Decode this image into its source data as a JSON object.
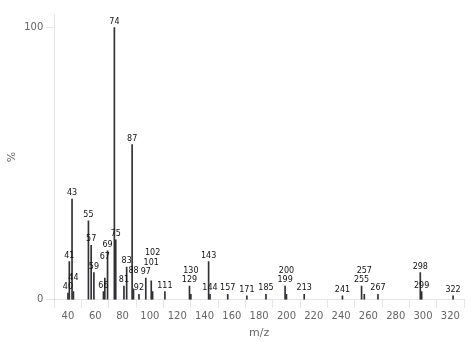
{
  "chart_data": {
    "type": "bar",
    "x": [
      40,
      41,
      43,
      44,
      55,
      57,
      59,
      66,
      67,
      69,
      74,
      75,
      81,
      83,
      87,
      88,
      92,
      97,
      101,
      102,
      111,
      129,
      130,
      143,
      144,
      157,
      171,
      185,
      199,
      200,
      213,
      241,
      255,
      257,
      267,
      298,
      299,
      322
    ],
    "values": [
      2.5,
      14,
      37,
      3,
      29,
      20,
      10,
      3,
      8,
      18,
      100,
      22,
      5,
      12,
      57,
      4,
      2,
      8,
      7,
      3,
      3,
      5,
      2,
      14,
      2,
      2,
      1.5,
      2,
      5,
      2,
      2,
      1.5,
      5,
      2,
      2,
      10,
      3,
      1.5
    ],
    "color": "#303035",
    "xlabel": "m/z",
    "ylabel": "%",
    "xlim": [
      30,
      330
    ],
    "ylim": [
      0,
      105
    ],
    "xticks": [
      40,
      60,
      80,
      100,
      120,
      140,
      160,
      180,
      200,
      220,
      240,
      260,
      280,
      300,
      320
    ],
    "yticks": [
      0,
      100
    ],
    "grid": false,
    "annotations": [
      {
        "text": "40",
        "x": 40,
        "y": 2.5
      },
      {
        "text": "41",
        "x": 41,
        "y": 14
      },
      {
        "text": "43",
        "x": 43,
        "y": 37
      },
      {
        "text": "44",
        "x": 44,
        "y": 3
      },
      {
        "text": "55",
        "x": 55,
        "y": 29
      },
      {
        "text": "57",
        "x": 57,
        "y": 20
      },
      {
        "text": "59",
        "x": 59,
        "y": 10
      },
      {
        "text": "66",
        "x": 66,
        "y": 3
      },
      {
        "text": "67",
        "x": 67,
        "y": 8
      },
      {
        "text": "69",
        "x": 69,
        "y": 18
      },
      {
        "text": "74",
        "x": 74,
        "y": 100
      },
      {
        "text": "75",
        "x": 75,
        "y": 22
      },
      {
        "text": "81",
        "x": 81,
        "y": 5
      },
      {
        "text": "83",
        "x": 83,
        "y": 12
      },
      {
        "text": "87",
        "x": 87,
        "y": 57
      },
      {
        "text": "88",
        "x": 88,
        "y": 4
      },
      {
        "text": "92",
        "x": 92,
        "y": 2
      },
      {
        "text": "97",
        "x": 97,
        "y": 8
      },
      {
        "text": "101",
        "x": 101,
        "y": 7
      },
      {
        "text": "102",
        "x": 102,
        "y": 3
      },
      {
        "text": "111",
        "x": 111,
        "y": 3
      },
      {
        "text": "129",
        "x": 129,
        "y": 5
      },
      {
        "text": "130",
        "x": 130,
        "y": 2
      },
      {
        "text": "143",
        "x": 143,
        "y": 14
      },
      {
        "text": "144",
        "x": 144,
        "y": 2
      },
      {
        "text": "157",
        "x": 157,
        "y": 2
      },
      {
        "text": "171",
        "x": 171,
        "y": 1.5
      },
      {
        "text": "185",
        "x": 185,
        "y": 2
      },
      {
        "text": "199",
        "x": 199,
        "y": 5
      },
      {
        "text": "200",
        "x": 200,
        "y": 2
      },
      {
        "text": "213",
        "x": 213,
        "y": 2
      },
      {
        "text": "241",
        "x": 241,
        "y": 1.5
      },
      {
        "text": "255",
        "x": 255,
        "y": 5
      },
      {
        "text": "257",
        "x": 257,
        "y": 2
      },
      {
        "text": "267",
        "x": 267,
        "y": 2
      },
      {
        "text": "298",
        "x": 298,
        "y": 10
      },
      {
        "text": "299",
        "x": 299,
        "y": 3
      },
      {
        "text": "322",
        "x": 322,
        "y": 1.5
      }
    ]
  }
}
